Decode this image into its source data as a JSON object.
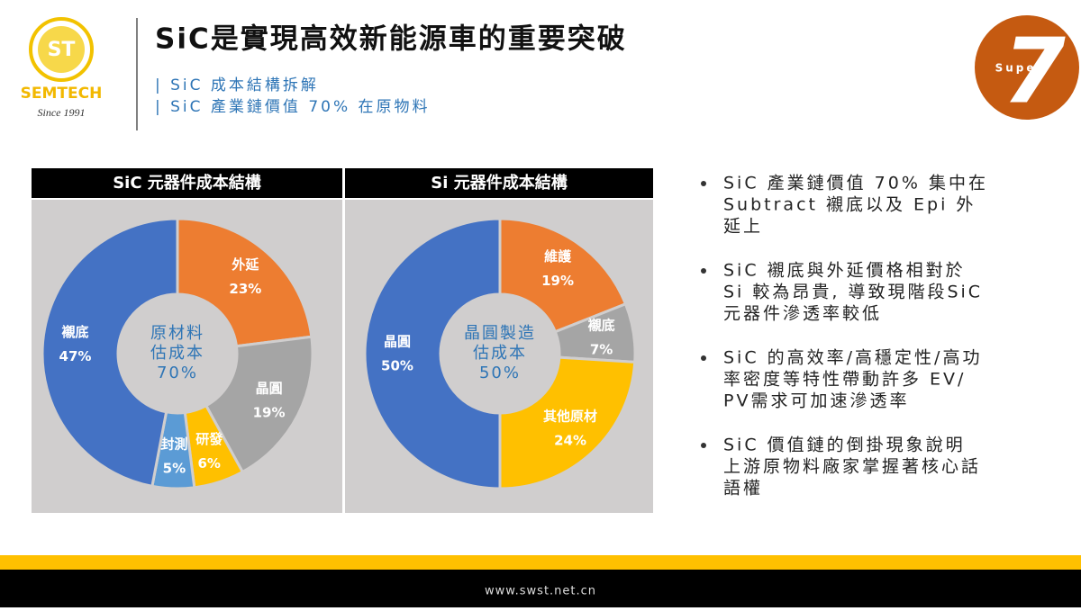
{
  "header": {
    "title": "SiC是實現高效新能源車的重要突破",
    "subtitles": [
      "| SiC 成本結構拆解",
      "| SiC 產業鏈價值 70% 在原物料"
    ]
  },
  "logo": {
    "mark": "ST",
    "name": "SEMTECH",
    "since": "Since 1991"
  },
  "badge": {
    "word": "Super",
    "number": "7"
  },
  "chart_data": [
    {
      "type": "pie",
      "title": "SiC 元器件成本結構",
      "center_label": [
        "原材料",
        "估成本",
        "70%"
      ],
      "categories": [
        "外延",
        "晶圓",
        "研發",
        "封測",
        "襯底"
      ],
      "values": [
        23,
        19,
        6,
        5,
        47
      ],
      "value_labels": [
        "23%",
        "19%",
        "6%",
        "5%",
        "47%"
      ],
      "colors": [
        "#ed7d31",
        "#a5a5a5",
        "#ffc000",
        "#5b9bd5",
        "#4472c4"
      ]
    },
    {
      "type": "pie",
      "title": "Si 元器件成本結構",
      "center_label": [
        "晶圓製造",
        "估成本",
        "50%"
      ],
      "categories": [
        "維護",
        "襯底",
        "其他原材",
        "晶圓"
      ],
      "values": [
        19,
        7,
        24,
        50
      ],
      "value_labels": [
        "19%",
        "7%",
        "24%",
        "50%"
      ],
      "colors": [
        "#ed7d31",
        "#a5a5a5",
        "#ffc000",
        "#4472c4"
      ]
    }
  ],
  "bullets": [
    [
      "SiC 產業鏈價值 70% 集中在",
      "Subtract 襯底以及 Epi 外",
      "延上"
    ],
    [
      "SiC 襯底與外延價格相對於",
      "Si 較為昂貴, 導致現階段SiC",
      "元器件滲透率較低"
    ],
    [
      "SiC 的高效率/高穩定性/高功",
      "率密度等特性帶動許多 EV/",
      "PV需求可加速滲透率"
    ],
    [
      "SiC 價值鏈的倒掛現象說明",
      "上游原物料廠家掌握著核心話",
      "語權"
    ]
  ],
  "footer": {
    "url": "www.swst.net.cn"
  }
}
